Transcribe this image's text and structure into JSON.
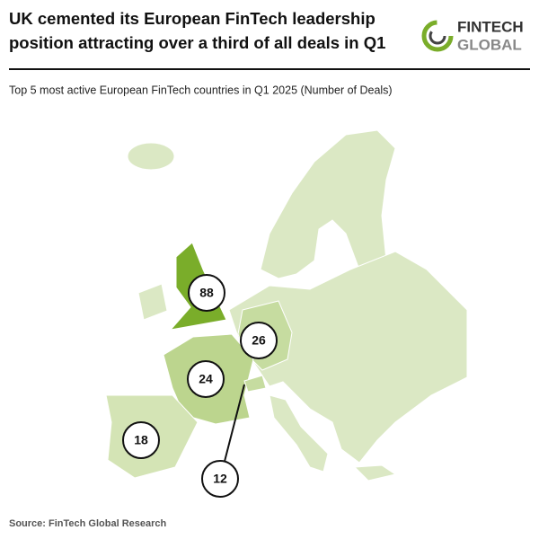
{
  "header": {
    "title": [
      "UK cemented its European FinTech leadership",
      "position attracting over a third of all deals in Q1"
    ],
    "logo": [
      "FINTECH",
      "GLOBAL"
    ]
  },
  "subtitle": "Top 5 most active European FinTech countries in Q1 2025 (Number of Deals)",
  "map": {
    "bubbles": [
      "88",
      "26",
      "24",
      "18",
      "12"
    ]
  },
  "source": "Source: FinTech Global Research"
}
